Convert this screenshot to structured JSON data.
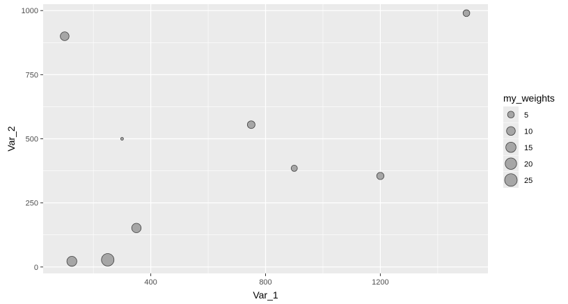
{
  "chart_data": {
    "type": "scatter",
    "title": "",
    "xlabel": "Var_1",
    "ylabel": "Var_2",
    "xlim": [
      25,
      1575
    ],
    "ylim": [
      -25,
      1025
    ],
    "x_ticks": [
      400,
      800,
      1200
    ],
    "y_ticks": [
      0,
      250,
      500,
      750,
      1000
    ],
    "grid": true,
    "colors": {
      "panel": "#ebebeb",
      "grid": "#ffffff",
      "point_fill": "#a6a6a6",
      "point_stroke": "#3c3c3c"
    },
    "points": [
      {
        "x": 100,
        "y": 900,
        "weight": 10
      },
      {
        "x": 300,
        "y": 500,
        "weight": 1
      },
      {
        "x": 125,
        "y": 22,
        "weight": 14
      },
      {
        "x": 250,
        "y": 28,
        "weight": 25
      },
      {
        "x": 350,
        "y": 152,
        "weight": 12
      },
      {
        "x": 750,
        "y": 555,
        "weight": 7
      },
      {
        "x": 900,
        "y": 385,
        "weight": 4
      },
      {
        "x": 1200,
        "y": 355,
        "weight": 6
      },
      {
        "x": 1500,
        "y": 990,
        "weight": 5
      }
    ],
    "legend": {
      "title": "my_weights",
      "placement": "right",
      "values": [
        5,
        10,
        15,
        20,
        25
      ],
      "labels": [
        "5",
        "10",
        "15",
        "20",
        "25"
      ]
    }
  }
}
